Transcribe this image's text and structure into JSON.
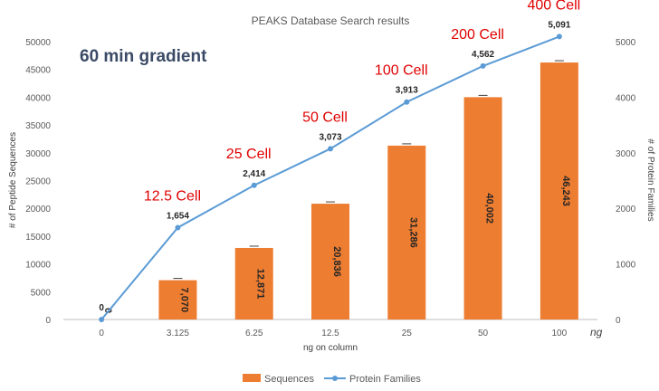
{
  "chart_data": {
    "type": "bar",
    "title": "PEAKS Database Search results",
    "xlabel": "ng on column",
    "ylabel": "# of Peptide Sequences",
    "y2label": "# of Protein Families",
    "x_unit": "ng",
    "categories": [
      "0",
      "3.125",
      "6.25",
      "12.5",
      "25",
      "50",
      "100"
    ],
    "ylim": [
      0,
      50000
    ],
    "y2lim": [
      0,
      5000
    ],
    "y_ticks": [
      "0",
      "5000",
      "10000",
      "15000",
      "20000",
      "25000",
      "30000",
      "35000",
      "40000",
      "45000",
      "50000"
    ],
    "y2_ticks": [
      "0",
      "1000",
      "2000",
      "3000",
      "4000",
      "5000"
    ],
    "series": [
      {
        "name": "Sequences",
        "type": "bar",
        "axis": "left",
        "color": "#ed7d31",
        "values": [
          0,
          7070,
          12871,
          20836,
          31286,
          40002,
          46243
        ],
        "labels": [
          "0",
          "7,070",
          "12,871",
          "20,836",
          "31,286",
          "40,002",
          "46,243"
        ]
      },
      {
        "name": "Protein Families",
        "type": "line",
        "axis": "right",
        "color": "#5b9bd5",
        "values": [
          0,
          1654,
          2414,
          3073,
          3913,
          4562,
          5091
        ],
        "labels": [
          "0",
          "1,654",
          "2,414",
          "3,073",
          "3,913",
          "4,562",
          "5,091"
        ]
      }
    ],
    "annotations": {
      "gradient": "60 min gradient",
      "cells": [
        "",
        "12.5 Cell",
        "25 Cell",
        "50 Cell",
        "100 Cell",
        "200 Cell",
        "400 Cell"
      ]
    },
    "legend_position": "bottom",
    "grid": false
  }
}
